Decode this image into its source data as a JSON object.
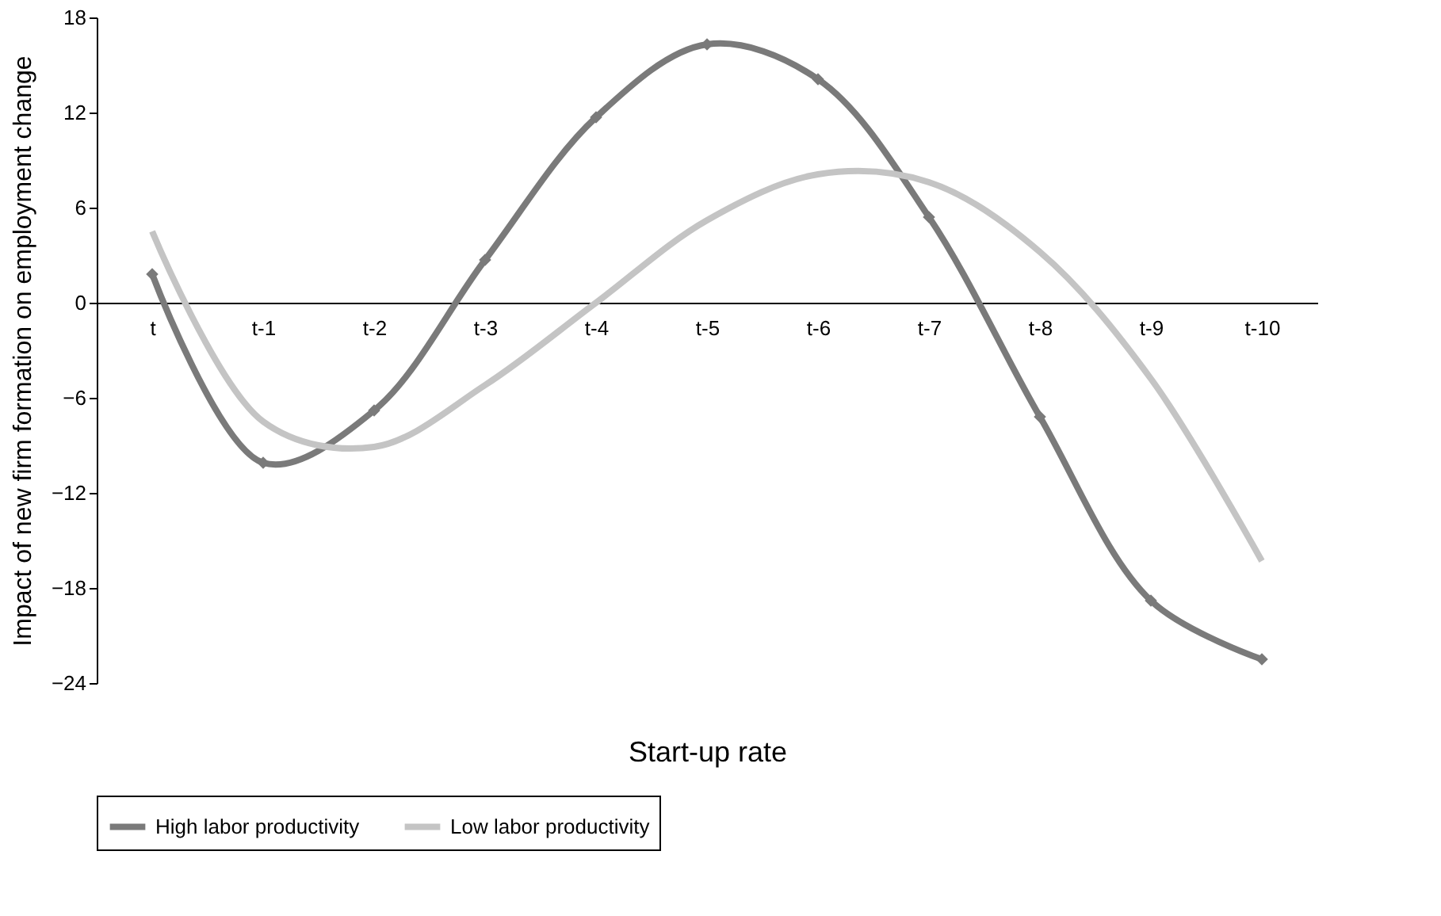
{
  "chart_data": {
    "type": "line",
    "xlabel": "Start-up rate",
    "ylabel": "Impact of new firm formation on employment change",
    "categories": [
      "t",
      "t-1",
      "t-2",
      "t-3",
      "t-4",
      "t-5",
      "t-6",
      "t-7",
      "t-8",
      "t-9",
      "t-10"
    ],
    "series": [
      {
        "name": "High labor productivity",
        "color": "#7a7a7a",
        "marker": "diamond",
        "line_style": "solid",
        "values": [
          1.8,
          -10.1,
          -6.8,
          2.7,
          11.7,
          16.3,
          14.1,
          5.4,
          -7.2,
          -18.8,
          -22.5
        ]
      },
      {
        "name": "Low labor productivity",
        "color": "#c4c4c4",
        "marker": "none",
        "line_style": "solid",
        "values": [
          4.5,
          -7.5,
          -9.1,
          -5.2,
          0.0,
          5.2,
          8.1,
          7.6,
          3.2,
          -4.8,
          -16.3
        ]
      }
    ],
    "ylim": [
      -24,
      18
    ],
    "yticks": [
      -24,
      -18,
      -12,
      -6,
      0,
      6,
      12,
      18
    ],
    "grid": false,
    "legend": "bottom"
  }
}
